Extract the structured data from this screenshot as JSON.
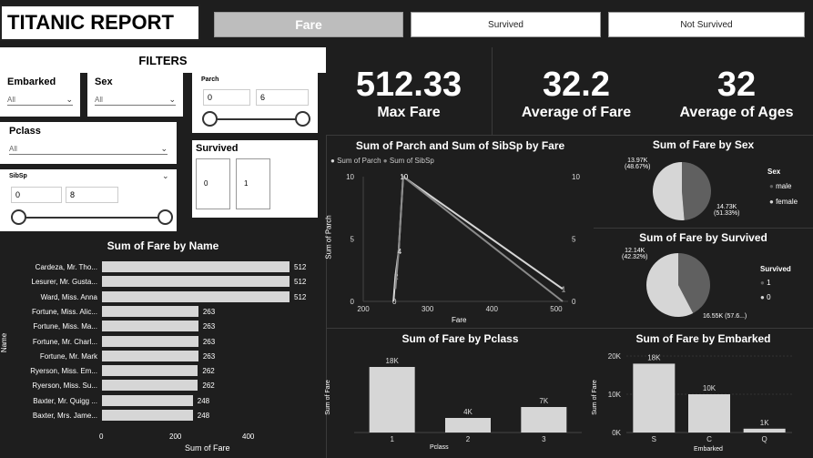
{
  "header": {
    "title": "TITANIC REPORT",
    "tabs": [
      {
        "label": "Fare",
        "active": true
      },
      {
        "label": "Survived",
        "active": false
      },
      {
        "label": "Not Survived",
        "active": false
      }
    ]
  },
  "filters": {
    "heading": "FILTERS",
    "embarked": {
      "label": "Embarked",
      "value": "All"
    },
    "sex": {
      "label": "Sex",
      "value": "All"
    },
    "parch": {
      "label": "Parch",
      "min": "0",
      "max": "6"
    },
    "pclass": {
      "label": "Pclass",
      "value": "All"
    },
    "survived": {
      "label": "Survived",
      "options": [
        "0",
        "1"
      ]
    },
    "sibsp": {
      "label": "SibSp",
      "min": "0",
      "max": "8"
    }
  },
  "kpis": [
    {
      "value": "512.33",
      "label": "Max Fare"
    },
    {
      "value": "32.2",
      "label": "Average of Fare"
    },
    {
      "value": "32",
      "label": "Average of Ages"
    }
  ],
  "colors": {
    "light": "#d6d6d6",
    "dark": "#606060",
    "bg": "#1e1e1e"
  },
  "chart_data": [
    {
      "type": "bar",
      "orientation": "horizontal",
      "title": "Sum of Fare by Name",
      "xlabel": "Sum of Fare",
      "ylabel": "Name",
      "xlim": [
        0,
        512
      ],
      "xticks": [
        "0",
        "200",
        "400"
      ],
      "categories": [
        "Cardeza, Mr. Tho...",
        "Lesurer, Mr. Gusta...",
        "Ward, Miss. Anna",
        "Fortune, Miss. Alic...",
        "Fortune, Miss. Ma...",
        "Fortune, Mr. Charl...",
        "Fortune, Mr. Mark",
        "Ryerson, Miss. Em...",
        "Ryerson, Miss. Su...",
        "Baxter, Mr. Quigg ...",
        "Baxter, Mrs. Jame..."
      ],
      "values": [
        512,
        512,
        512,
        263,
        263,
        263,
        263,
        262,
        262,
        248,
        248
      ],
      "value_labels": [
        "512",
        "512",
        "512",
        "263",
        "263",
        "263",
        "263",
        "262",
        "262",
        "248",
        "248"
      ]
    },
    {
      "type": "line",
      "title": "Sum of Parch and Sum of SibSp by Fare",
      "xlabel": "Fare",
      "ylabel": "Sum of Parch",
      "xticks": [
        "200",
        "300",
        "400",
        "500"
      ],
      "yticks": [
        "0",
        "5",
        "10"
      ],
      "y2ticks": [
        "0",
        "5",
        "10"
      ],
      "series": [
        {
          "name": "Sum of Parch",
          "x": [
            247,
            250,
            255,
            262,
            510
          ],
          "y": [
            0,
            2,
            4,
            10,
            1
          ],
          "labels": [
            "0",
            "2",
            "4",
            "10",
            "1"
          ]
        },
        {
          "name": "Sum of SibSp",
          "x": [
            250,
            255,
            262,
            510
          ],
          "y": [
            1,
            4,
            10,
            0
          ],
          "labels": [
            "",
            "4",
            "10",
            ""
          ]
        }
      ]
    },
    {
      "type": "pie",
      "title": "Sum of Fare by Sex",
      "legend_title": "Sex",
      "legend": [
        "male",
        "female"
      ],
      "slices": [
        {
          "label": "male",
          "value": 13.97,
          "text": "13.97K",
          "pct": "(48.67%)"
        },
        {
          "label": "female",
          "value": 14.73,
          "text": "14.73K",
          "pct": "(51.33%)"
        }
      ]
    },
    {
      "type": "pie",
      "title": "Sum of Fare by Survived",
      "legend_title": "Survived",
      "legend": [
        "1",
        "0"
      ],
      "slices": [
        {
          "label": "1",
          "value": 12.14,
          "text": "12.14K",
          "pct": "(42.32%)"
        },
        {
          "label": "0",
          "value": 16.55,
          "text": "16.55K (57.6...)",
          "pct": ""
        }
      ]
    },
    {
      "type": "bar",
      "title": "Sum of Fare by Pclass",
      "xlabel": "Pclass",
      "ylabel": "Sum of Fare",
      "categories": [
        "1",
        "2",
        "3"
      ],
      "values": [
        18,
        4,
        7
      ],
      "value_labels": [
        "18K",
        "4K",
        "7K"
      ]
    },
    {
      "type": "bar",
      "title": "Sum of Fare by Embarked",
      "xlabel": "Embarked",
      "ylabel": "Sum of Fare",
      "yticks": [
        "0K",
        "10K",
        "20K"
      ],
      "ylim": [
        0,
        20
      ],
      "categories": [
        "S",
        "C",
        "Q"
      ],
      "values": [
        18,
        10,
        1
      ],
      "value_labels": [
        "18K",
        "10K",
        "1K"
      ]
    }
  ]
}
